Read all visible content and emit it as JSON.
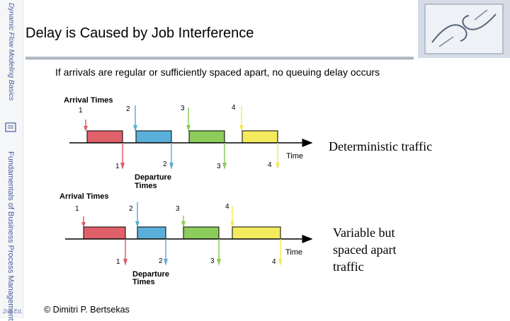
{
  "sidebar": {
    "top_text": "Dynamic Flow Modeling Basics",
    "series_text": "Fundamentals of Business Process Management",
    "edition": "2nd Ed."
  },
  "title": "Delay is Caused by Job Interference",
  "body": "If arrivals are regular or sufficiently spaced apart, no queuing delay occurs",
  "colors": {
    "job1": "#e0606a",
    "job2": "#5aafd9",
    "job3": "#8ccc5a",
    "job4": "#f4ea5e"
  },
  "diagrams": [
    {
      "arrival_label": "Arrival Times",
      "departure_label": "Departure Times",
      "time_label": "Time",
      "arrival_numbers": [
        "1",
        "2",
        "3",
        "4"
      ],
      "departure_numbers": [
        "1",
        "2",
        "3",
        "4"
      ],
      "caption": "Deterministic traffic"
    },
    {
      "arrival_label": "Arrival Times",
      "departure_label": "Departure Times",
      "time_label": "Time",
      "arrival_numbers": [
        "1",
        "2",
        "3",
        "4"
      ],
      "departure_numbers": [
        "1",
        "2",
        "3",
        "4"
      ],
      "caption_lines": [
        "Variable but",
        "spaced apart",
        "traffic"
      ]
    }
  ],
  "footer": "© Dimitri P. Bertsekas"
}
